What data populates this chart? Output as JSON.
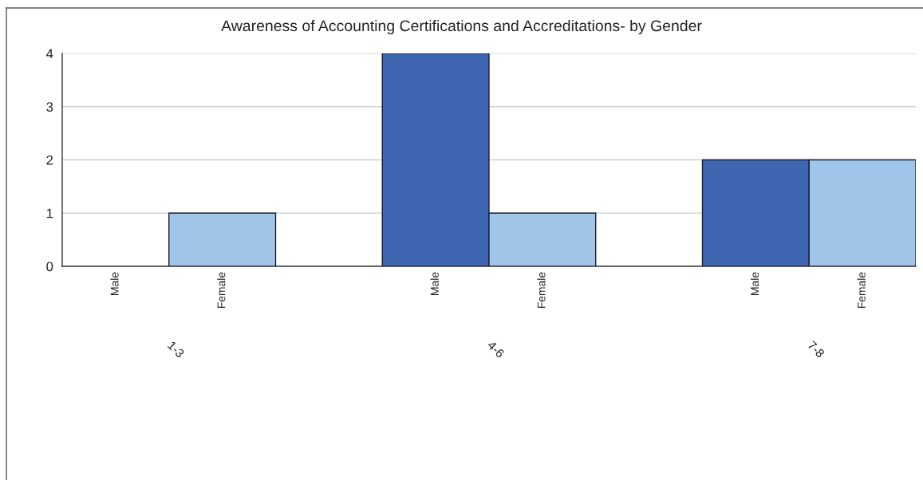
{
  "chart_data": {
    "type": "bar",
    "title": "Awareness of Accounting Certifications and Accreditations- by Gender",
    "categories": [
      "1-3",
      "4-6",
      "7-8"
    ],
    "series": [
      {
        "name": "Male",
        "color": "#3f66b0",
        "values": [
          0,
          4,
          2
        ]
      },
      {
        "name": "Female",
        "color": "#9fc5e8",
        "values": [
          1,
          1,
          2
        ]
      }
    ],
    "ylim": [
      0,
      4
    ],
    "yticks": [
      0,
      1,
      2,
      3,
      4
    ],
    "grid": "y",
    "legend": false
  }
}
